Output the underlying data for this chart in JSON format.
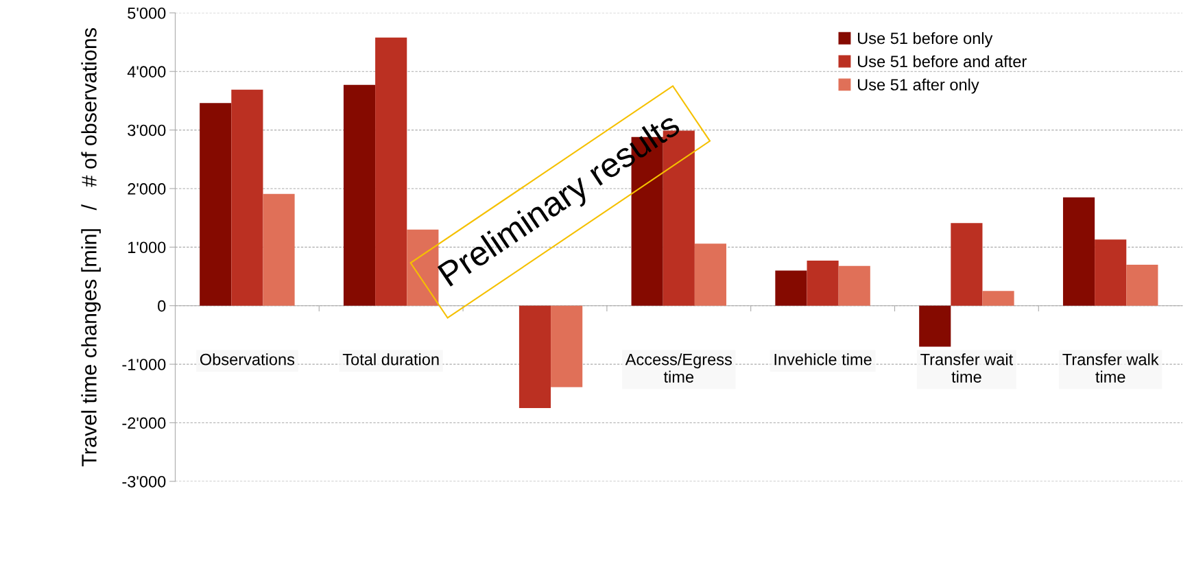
{
  "chart_data": {
    "type": "bar",
    "ylabel": "Travel time changes [min]   /   # of observations",
    "categories": [
      "Observations",
      "Total duration",
      null,
      "Access/Egress\ntime",
      "Invehicle time",
      "Transfer wait\ntime",
      "Transfer walk\ntime"
    ],
    "series": [
      {
        "name": "Use 51 before only",
        "color": "#850a00",
        "values": [
          3460,
          3770,
          null,
          2880,
          600,
          -700,
          1850
        ]
      },
      {
        "name": "Use 51 before and after",
        "color": "#bb3022",
        "values": [
          3690,
          4580,
          -1750,
          2990,
          770,
          1410,
          1130
        ]
      },
      {
        "name": "Use 51 after only",
        "color": "#e07058",
        "values": [
          1910,
          1300,
          -1390,
          1060,
          680,
          250,
          700
        ]
      }
    ],
    "ylim": [
      -3000,
      5000
    ],
    "yticks": [
      {
        "value": -3000,
        "label": "-3'000"
      },
      {
        "value": -2000,
        "label": "-2'000"
      },
      {
        "value": -1000,
        "label": "-1'000"
      },
      0,
      {
        "value": 1000,
        "label": "1'000"
      },
      {
        "value": 2000,
        "label": "2'000"
      },
      {
        "value": 3000,
        "label": "3'000"
      },
      {
        "value": 4000,
        "label": "4'000"
      },
      {
        "value": 5000,
        "label": "5'000"
      }
    ],
    "grid": "y",
    "legend": "top right",
    "annotations": [
      "Preliminary results"
    ]
  }
}
